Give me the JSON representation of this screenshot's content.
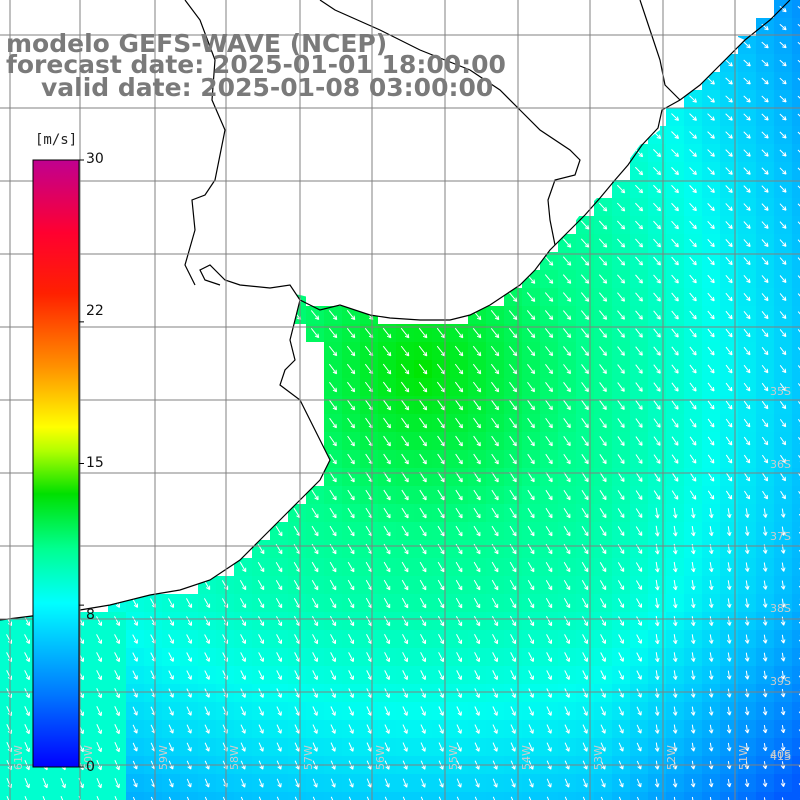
{
  "title": {
    "line1": "modelo GEFS-WAVE (NCEP)",
    "line2": "forecast date: 2025-01-01 18:00:00",
    "line3": "valid date: 2025-01-08 03:00:00"
  },
  "colorbar": {
    "unit": "[m/s]",
    "ticks": [
      "30",
      "22",
      "15",
      "8",
      "0"
    ],
    "tick_values": [
      30,
      22,
      15,
      8,
      0
    ],
    "colors": [
      "#0000ff",
      "#0070ff",
      "#00c8ff",
      "#00ffff",
      "#00ff80",
      "#00ff00",
      "#a0ff00",
      "#ffff00",
      "#ffa000",
      "#ff4000",
      "#ff0000",
      "#e00050",
      "#c00080"
    ]
  },
  "map": {
    "lat_labels": [
      "35S",
      "36S",
      "37S",
      "38S",
      "39S",
      "40S",
      "41S"
    ],
    "lon_labels": [
      "61W",
      "60W",
      "59W",
      "58W",
      "57W",
      "56W",
      "55W",
      "54W",
      "53W",
      "52W",
      "51W"
    ],
    "grid": true,
    "variable": "wind speed and direction",
    "land_color": "#ffffff",
    "coastline_color": "#000000"
  }
}
